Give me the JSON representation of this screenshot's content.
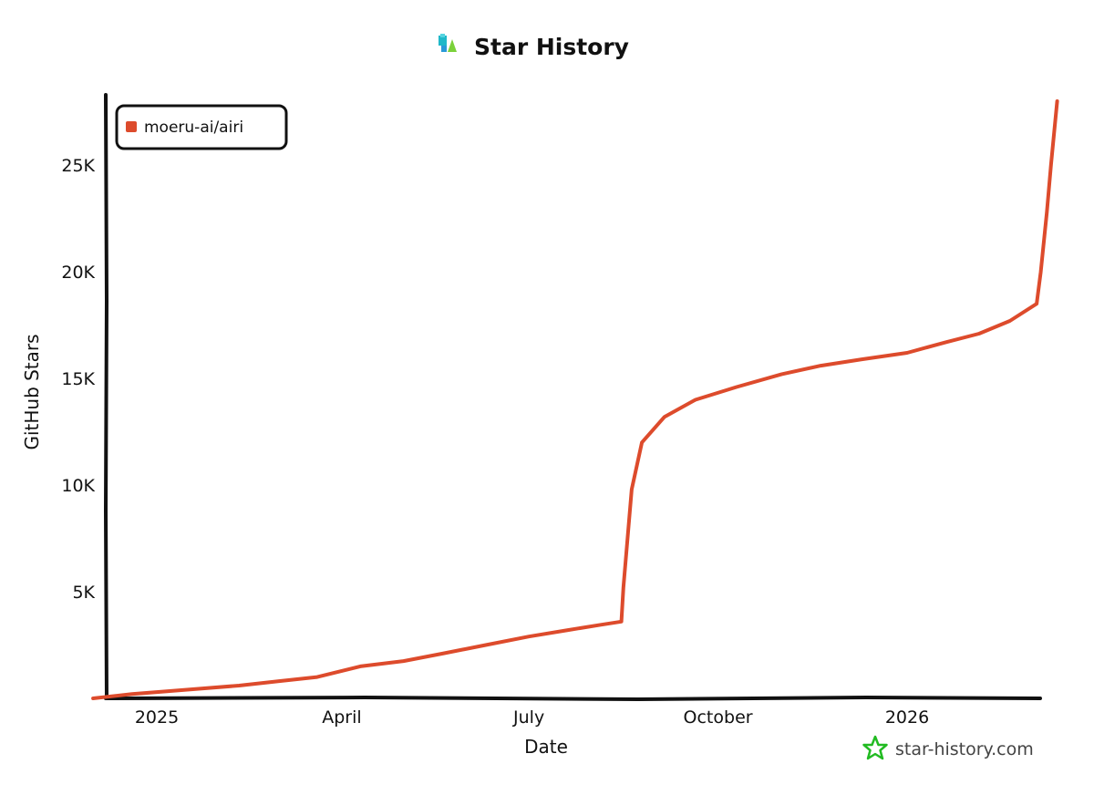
{
  "chart_data": {
    "type": "line",
    "title": "Star History",
    "xlabel": "Date",
    "ylabel": "GitHub Stars",
    "x_tick_labels": [
      "2025",
      "April",
      "July",
      "October",
      "2026"
    ],
    "y_tick_labels": [
      "5K",
      "10K",
      "15K",
      "20K",
      "25K"
    ],
    "y_ticks": [
      5000,
      10000,
      15000,
      20000,
      25000
    ],
    "ylim": [
      0,
      28300
    ],
    "grid": false,
    "legend_position": "top-left",
    "series": [
      {
        "name": "moeru-ai/airi",
        "color": "#dd4b2c",
        "x": [
          "2024-12-01",
          "2024-12-20",
          "2025-01-15",
          "2025-02-10",
          "2025-03-01",
          "2025-03-20",
          "2025-04-10",
          "2025-05-01",
          "2025-05-20",
          "2025-06-10",
          "2025-07-01",
          "2025-07-20",
          "2025-08-05",
          "2025-08-15",
          "2025-08-16",
          "2025-08-20",
          "2025-08-25",
          "2025-09-05",
          "2025-09-20",
          "2025-10-10",
          "2025-11-01",
          "2025-11-20",
          "2025-12-10",
          "2026-01-01",
          "2026-01-20",
          "2026-02-05",
          "2026-02-20",
          "2026-03-05",
          "2026-03-07",
          "2026-03-10",
          "2026-03-12",
          "2026-03-15"
        ],
        "values": [
          0,
          200,
          400,
          600,
          800,
          1000,
          1500,
          1750,
          2100,
          2500,
          2900,
          3200,
          3450,
          3600,
          5200,
          9800,
          12000,
          13200,
          14000,
          14600,
          15200,
          15600,
          15900,
          16200,
          16700,
          17100,
          17700,
          18500,
          20000,
          22800,
          25000,
          28000
        ]
      }
    ]
  },
  "watermark": {
    "text": "star-history.com",
    "color": "#22bb22"
  }
}
